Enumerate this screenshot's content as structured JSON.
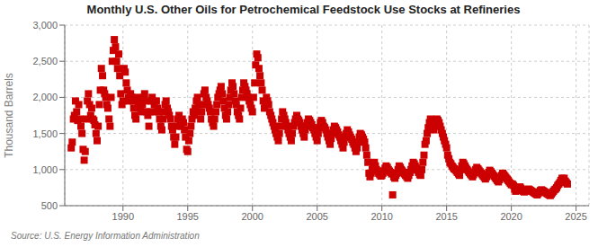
{
  "chart_data": {
    "type": "scatter",
    "title": "Monthly U.S. Other Oils for Petrochemical Feedstock Use Stocks at Refineries",
    "y_label": "Thousand Barrels",
    "annotation": "Source: U.S. Energy Information Administration",
    "color": "#cc0000",
    "marker": "square",
    "grid": true,
    "xlim": [
      1985.5,
      2026.0
    ],
    "xticks": [
      1990,
      1995,
      2000,
      2005,
      2010,
      2015,
      2020,
      2025
    ],
    "ylim": [
      500,
      3000
    ],
    "yticks": [
      500,
      {
        "value": 1000,
        "label": "1,000"
      },
      {
        "value": 1500,
        "label": "1,500"
      },
      {
        "value": 2000,
        "label": "2,000"
      },
      {
        "value": 2500,
        "label": "2,500"
      },
      {
        "value": 3000,
        "label": "3,000"
      }
    ],
    "x": [
      1986.0,
      1986.08,
      1986.17,
      1986.25,
      1986.33,
      1986.42,
      1986.5,
      1986.58,
      1986.67,
      1986.75,
      1986.83,
      1986.92,
      1987.0,
      1987.08,
      1987.17,
      1987.25,
      1987.33,
      1987.42,
      1987.5,
      1987.58,
      1987.67,
      1987.75,
      1987.83,
      1987.92,
      1988.0,
      1988.08,
      1988.17,
      1988.25,
      1988.33,
      1988.42,
      1988.5,
      1988.58,
      1988.67,
      1988.75,
      1988.83,
      1988.92,
      1989.0,
      1989.08,
      1989.17,
      1989.25,
      1989.33,
      1989.42,
      1989.5,
      1989.58,
      1989.67,
      1989.75,
      1989.83,
      1989.92,
      1990.0,
      1990.08,
      1990.17,
      1990.25,
      1990.33,
      1990.42,
      1990.5,
      1990.58,
      1990.67,
      1990.75,
      1990.83,
      1990.92,
      1991.0,
      1991.08,
      1991.17,
      1991.25,
      1991.33,
      1991.42,
      1991.5,
      1991.58,
      1991.67,
      1991.75,
      1991.83,
      1991.92,
      1992.0,
      1992.08,
      1992.17,
      1992.25,
      1992.33,
      1992.42,
      1992.5,
      1992.58,
      1992.67,
      1992.75,
      1992.83,
      1992.92,
      1993.0,
      1993.08,
      1993.17,
      1993.25,
      1993.33,
      1993.42,
      1993.5,
      1993.58,
      1993.67,
      1993.75,
      1993.83,
      1993.92,
      1994.0,
      1994.08,
      1994.17,
      1994.25,
      1994.33,
      1994.42,
      1994.5,
      1994.58,
      1994.67,
      1994.75,
      1994.83,
      1994.92,
      1995.0,
      1995.08,
      1995.17,
      1995.25,
      1995.33,
      1995.42,
      1995.5,
      1995.58,
      1995.67,
      1995.75,
      1995.83,
      1995.92,
      1996.0,
      1996.08,
      1996.17,
      1996.25,
      1996.33,
      1996.42,
      1996.5,
      1996.58,
      1996.67,
      1996.75,
      1996.83,
      1996.92,
      1997.0,
      1997.08,
      1997.17,
      1997.25,
      1997.33,
      1997.42,
      1997.5,
      1997.58,
      1997.67,
      1997.75,
      1997.83,
      1997.92,
      1998.0,
      1998.08,
      1998.17,
      1998.25,
      1998.33,
      1998.42,
      1998.5,
      1998.58,
      1998.67,
      1998.75,
      1998.83,
      1998.92,
      1999.0,
      1999.08,
      1999.17,
      1999.25,
      1999.33,
      1999.42,
      1999.5,
      1999.58,
      1999.67,
      1999.75,
      1999.83,
      1999.92,
      2000.0,
      2000.08,
      2000.17,
      2000.25,
      2000.33,
      2000.42,
      2000.5,
      2000.58,
      2000.67,
      2000.75,
      2000.83,
      2000.92,
      2001.0,
      2001.08,
      2001.17,
      2001.25,
      2001.33,
      2001.42,
      2001.5,
      2001.58,
      2001.67,
      2001.75,
      2001.83,
      2001.92,
      2002.0,
      2002.08,
      2002.17,
      2002.25,
      2002.33,
      2002.42,
      2002.5,
      2002.58,
      2002.67,
      2002.75,
      2002.83,
      2002.92,
      2003.0,
      2003.08,
      2003.17,
      2003.25,
      2003.33,
      2003.42,
      2003.5,
      2003.58,
      2003.67,
      2003.75,
      2003.83,
      2003.92,
      2004.0,
      2004.08,
      2004.17,
      2004.25,
      2004.33,
      2004.42,
      2004.5,
      2004.58,
      2004.67,
      2004.75,
      2004.83,
      2004.92,
      2005.0,
      2005.08,
      2005.17,
      2005.25,
      2005.33,
      2005.42,
      2005.5,
      2005.58,
      2005.67,
      2005.75,
      2005.83,
      2005.92,
      2006.0,
      2006.08,
      2006.17,
      2006.25,
      2006.33,
      2006.42,
      2006.5,
      2006.58,
      2006.67,
      2006.75,
      2006.83,
      2006.92,
      2007.0,
      2007.08,
      2007.17,
      2007.25,
      2007.33,
      2007.42,
      2007.5,
      2007.58,
      2007.67,
      2007.75,
      2007.83,
      2007.92,
      2008.0,
      2008.08,
      2008.17,
      2008.25,
      2008.33,
      2008.42,
      2008.5,
      2008.58,
      2008.67,
      2008.75,
      2008.83,
      2008.92,
      2009.0,
      2009.08,
      2009.17,
      2009.25,
      2009.33,
      2009.42,
      2009.5,
      2009.58,
      2009.67,
      2009.75,
      2009.83,
      2009.92,
      2010.0,
      2010.08,
      2010.17,
      2010.25,
      2010.33,
      2010.42,
      2010.5,
      2010.58,
      2010.67,
      2010.75,
      2010.83,
      2010.92,
      2011.0,
      2011.08,
      2011.17,
      2011.25,
      2011.33,
      2011.42,
      2011.5,
      2011.58,
      2011.67,
      2011.75,
      2011.83,
      2011.92,
      2012.0,
      2012.08,
      2012.17,
      2012.25,
      2012.33,
      2012.42,
      2012.5,
      2012.58,
      2012.67,
      2012.75,
      2012.83,
      2012.92,
      2013.0,
      2013.08,
      2013.17,
      2013.25,
      2013.33,
      2013.42,
      2013.5,
      2013.58,
      2013.67,
      2013.75,
      2013.83,
      2013.92,
      2014.0,
      2014.08,
      2014.17,
      2014.25,
      2014.33,
      2014.42,
      2014.5,
      2014.58,
      2014.67,
      2014.75,
      2014.83,
      2014.92,
      2015.0,
      2015.08,
      2015.17,
      2015.25,
      2015.33,
      2015.42,
      2015.5,
      2015.58,
      2015.67,
      2015.75,
      2015.83,
      2015.92,
      2016.0,
      2016.08,
      2016.17,
      2016.25,
      2016.33,
      2016.42,
      2016.5,
      2016.58,
      2016.67,
      2016.75,
      2016.83,
      2016.92,
      2017.0,
      2017.08,
      2017.17,
      2017.25,
      2017.33,
      2017.42,
      2017.5,
      2017.58,
      2017.67,
      2017.75,
      2017.83,
      2017.92,
      2018.0,
      2018.08,
      2018.17,
      2018.25,
      2018.33,
      2018.42,
      2018.5,
      2018.58,
      2018.67,
      2018.75,
      2018.83,
      2018.92,
      2019.0,
      2019.08,
      2019.17,
      2019.25,
      2019.33,
      2019.42,
      2019.5,
      2019.58,
      2019.67,
      2019.75,
      2019.83,
      2019.92,
      2020.0,
      2020.08,
      2020.17,
      2020.25,
      2020.33,
      2020.42,
      2020.5,
      2020.58,
      2020.67,
      2020.75,
      2020.83,
      2020.92,
      2021.0,
      2021.08,
      2021.17,
      2021.25,
      2021.33,
      2021.42,
      2021.5,
      2021.58,
      2021.67,
      2021.75,
      2021.83,
      2021.92,
      2022.0,
      2022.08,
      2022.17,
      2022.25,
      2022.33,
      2022.42,
      2022.5,
      2022.58,
      2022.67,
      2022.75,
      2022.83,
      2022.92,
      2023.0,
      2023.08,
      2023.17,
      2023.25,
      2023.33,
      2023.42,
      2023.5,
      2023.58,
      2023.67,
      2023.75,
      2023.83,
      2023.92,
      2024.0,
      2024.08,
      2024.17,
      2024.25,
      2024.33
    ],
    "values": [
      1300,
      1380,
      1700,
      1750,
      1950,
      1800,
      1680,
      1900,
      1700,
      1600,
      1500,
      1280,
      1130,
      1250,
      1700,
      1950,
      2050,
      1900,
      1750,
      1850,
      1700,
      1680,
      1620,
      1500,
      1400,
      1600,
      1900,
      2100,
      2400,
      2300,
      2100,
      2050,
      2000,
      1900,
      1850,
      1700,
      1600,
      2000,
      2500,
      2650,
      2800,
      2700,
      2500,
      2400,
      2600,
      2300,
      2050,
      1900,
      1950,
      2400,
      2350,
      2200,
      2100,
      2000,
      1950,
      2050,
      2000,
      1950,
      1850,
      1750,
      1700,
      2000,
      1900,
      1950,
      1850,
      1800,
      1900,
      2000,
      2050,
      1950,
      1800,
      1750,
      1600,
      1800,
      1950,
      2000,
      1950,
      1900,
      1800,
      1950,
      1850,
      1800,
      1700,
      1600,
      1550,
      1700,
      1800,
      1900,
      1950,
      1850,
      1800,
      1750,
      1700,
      1600,
      1550,
      1450,
      1350,
      1450,
      1600,
      1700,
      1750,
      1650,
      1600,
      1700,
      1650,
      1550,
      1450,
      1280,
      1250,
      1400,
      1500,
      1600,
      1700,
      1800,
      1750,
      1850,
      1950,
      2000,
      1900,
      1800,
      1700,
      1800,
      1900,
      2050,
      2100,
      2000,
      1950,
      1900,
      1850,
      1800,
      1700,
      1650,
      1600,
      1700,
      1800,
      1900,
      2000,
      2050,
      2100,
      2150,
      2050,
      1950,
      1850,
      1750,
      1700,
      1800,
      1900,
      2000,
      2100,
      2200,
      2150,
      2050,
      1950,
      1900,
      1800,
      1750,
      1700,
      1850,
      2000,
      2100,
      2200,
      2150,
      2100,
      2050,
      2000,
      1950,
      1900,
      1850,
      1800,
      2000,
      2200,
      2450,
      2600,
      2550,
      2400,
      2300,
      2200,
      2100,
      1950,
      1850,
      1900,
      2000,
      1950,
      1900,
      1800,
      1750,
      1700,
      1650,
      1600,
      1550,
      1500,
      1450,
      1400,
      1500,
      1600,
      1700,
      1800,
      1750,
      1700,
      1650,
      1600,
      1550,
      1500,
      1450,
      1400,
      1500,
      1600,
      1650,
      1700,
      1750,
      1700,
      1680,
      1650,
      1600,
      1550,
      1500,
      1450,
      1550,
      1600,
      1650,
      1700,
      1680,
      1650,
      1620,
      1580,
      1550,
      1500,
      1450,
      1400,
      1500,
      1580,
      1650,
      1680,
      1650,
      1600,
      1580,
      1550,
      1500,
      1450,
      1400,
      1350,
      1430,
      1500,
      1550,
      1600,
      1580,
      1550,
      1520,
      1480,
      1450,
      1400,
      1350,
      1300,
      1380,
      1450,
      1500,
      1550,
      1520,
      1480,
      1450,
      1420,
      1380,
      1350,
      1300,
      1250,
      1300,
      1380,
      1450,
      1500,
      1480,
      1450,
      1420,
      1380,
      1300,
      1200,
      1100,
      950,
      900,
      950,
      1000,
      1050,
      1100,
      1050,
      1000,
      980,
      950,
      930,
      910,
      920,
      950,
      980,
      1020,
      1050,
      1030,
      1000,
      980,
      960,
      940,
      650,
      900,
      880,
      920,
      950,
      1000,
      1050,
      1030,
      1000,
      980,
      960,
      940,
      920,
      900,
      880,
      920,
      960,
      1000,
      1050,
      1100,
      1080,
      1050,
      1020,
      990,
      960,
      930,
      920,
      1000,
      1100,
      1200,
      1350,
      1400,
      1500,
      1580,
      1650,
      1700,
      1650,
      1600,
      1550,
      1600,
      1650,
      1700,
      1680,
      1650,
      1600,
      1550,
      1500,
      1450,
      1400,
      1350,
      1300,
      1200,
      1150,
      1100,
      1080,
      1050,
      1030,
      1010,
      1000,
      980,
      960,
      940,
      920,
      1000,
      1050,
      1100,
      1080,
      1050,
      1020,
      1000,
      980,
      960,
      940,
      920,
      900,
      930,
      960,
      1000,
      1030,
      1010,
      990,
      970,
      950,
      930,
      910,
      890,
      870,
      900,
      930,
      960,
      990,
      970,
      950,
      930,
      910,
      890,
      870,
      850,
      830,
      860,
      890,
      920,
      950,
      930,
      910,
      890,
      870,
      850,
      830,
      810,
      790,
      800,
      780,
      730,
      700,
      710,
      730,
      750,
      760,
      740,
      720,
      700,
      690,
      700,
      710,
      720,
      730,
      720,
      710,
      700,
      690,
      680,
      670,
      660,
      650,
      670,
      690,
      710,
      720,
      710,
      700,
      690,
      680,
      670,
      660,
      650,
      640,
      660,
      680,
      700,
      720,
      730,
      750,
      780,
      800,
      820,
      850,
      880,
      860,
      880,
      840,
      820,
      800
    ]
  }
}
